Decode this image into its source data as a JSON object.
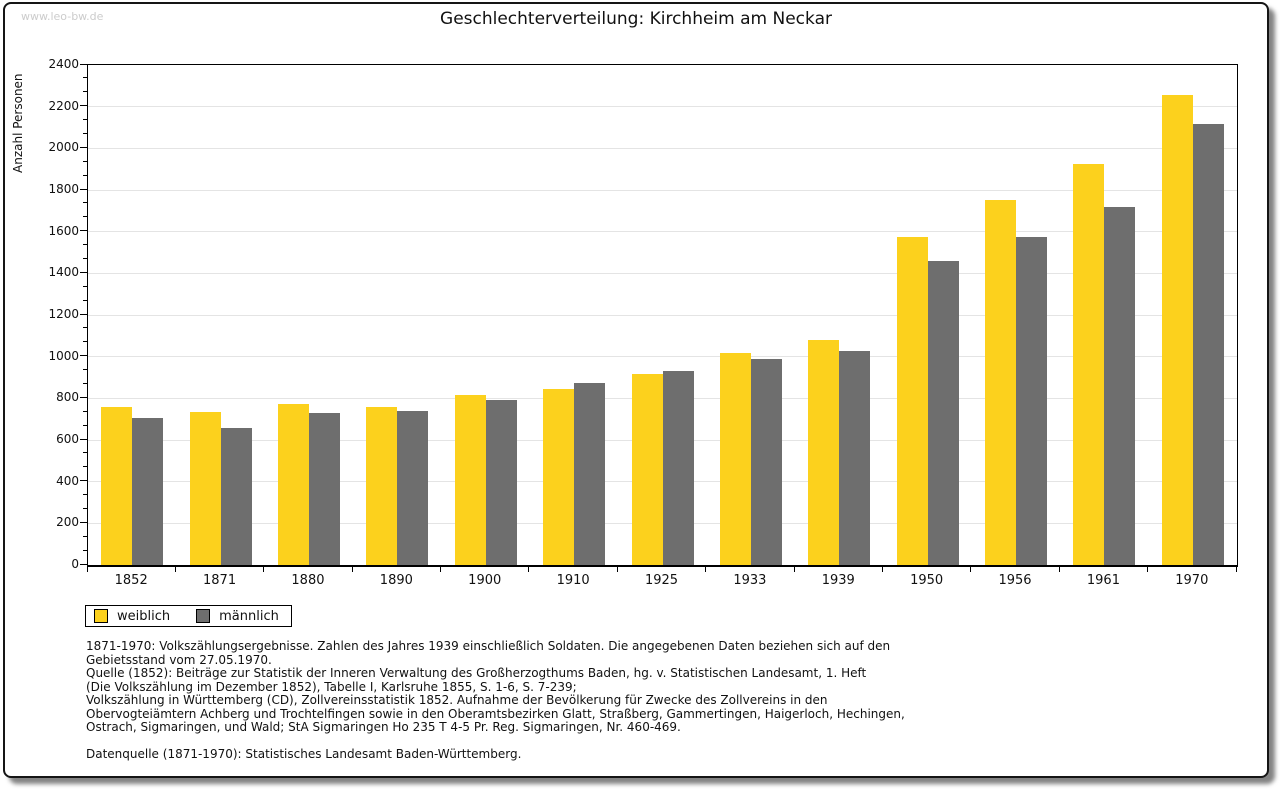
{
  "watermark": "www.leo-bw.de",
  "title": "Geschlechterverteilung: Kirchheim am Neckar",
  "chart_data": {
    "type": "bar",
    "title": "Geschlechterverteilung: Kirchheim am Neckar",
    "xlabel": "",
    "ylabel": "Anzahl Personen",
    "ylim": [
      0,
      2400
    ],
    "ytick_step": 200,
    "grid": true,
    "legend_position": "bottom-left",
    "categories": [
      "1852",
      "1871",
      "1880",
      "1890",
      "1900",
      "1910",
      "1925",
      "1933",
      "1939",
      "1950",
      "1956",
      "1961",
      "1970"
    ],
    "series": [
      {
        "name": "weiblich",
        "color": "#fcd11d",
        "values": [
          760,
          735,
          775,
          760,
          815,
          845,
          915,
          1020,
          1080,
          1575,
          1750,
          1925,
          2255
        ]
      },
      {
        "name": "männlich",
        "color": "#6e6e6e",
        "values": [
          705,
          660,
          730,
          740,
          790,
          875,
          930,
          990,
          1025,
          1460,
          1575,
          1720,
          2115
        ]
      }
    ]
  },
  "footnotes": {
    "lines": [
      "1871-1970: Volkszählungsergebnisse. Zahlen des Jahres 1939 einschließlich Soldaten. Die angegebenen Daten beziehen sich auf den",
      "Gebietsstand vom 27.05.1970.",
      "Quelle (1852): Beiträge zur Statistik der Inneren Verwaltung des Großherzogthums Baden, hg. v. Statistischen Landesamt, 1. Heft",
      "(Die Volkszählung im Dezember 1852), Tabelle I, Karlsruhe 1855, S. 1-6, S. 7-239;",
      "Volkszählung in Württemberg (CD), Zollvereinsstatistik 1852. Aufnahme der Bevölkerung für Zwecke des Zollvereins in den",
      "Obervogteiämtern Achberg und Trochtelfingen sowie in den Oberamtsbezirken Glatt, Straßberg, Gammertingen, Haigerloch, Hechingen,",
      "Ostrach, Sigmaringen, und Wald; StA Sigmaringen Ho 235 T 4-5 Pr. Reg. Sigmaringen, Nr. 460-469."
    ],
    "datasource": "Datenquelle (1871-1970): Statistisches Landesamt Baden-Württemberg."
  }
}
